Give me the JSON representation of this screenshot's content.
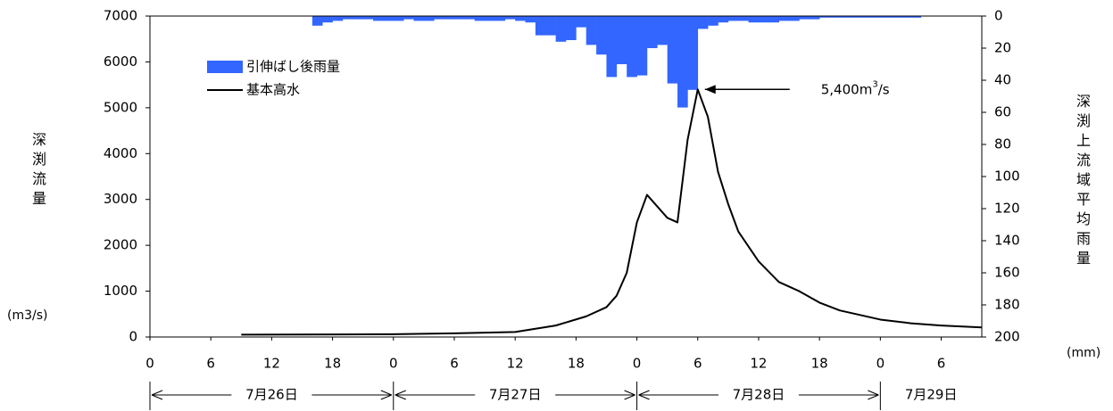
{
  "chart_data": {
    "type": "combo",
    "y_label": "深渕流量",
    "y_unit": "(m3/s)",
    "y2_label": "深渕上流域平均雨量",
    "y2_unit": "(mm)",
    "annotation": [
      "5,400m",
      "3",
      "/s"
    ],
    "xlim": [
      0,
      82
    ],
    "xticks": [
      0,
      6,
      12,
      18,
      {
        "value": 24,
        "label": "0"
      },
      {
        "value": 30,
        "label": "6"
      },
      {
        "value": 36,
        "label": "12"
      },
      {
        "value": 42,
        "label": "18"
      },
      {
        "value": 48,
        "label": "0"
      },
      {
        "value": 54,
        "label": "6"
      },
      {
        "value": 60,
        "label": "12"
      },
      {
        "value": 66,
        "label": "18"
      },
      {
        "value": 72,
        "label": "0"
      },
      {
        "value": 78,
        "label": "6"
      }
    ],
    "ylim": [
      0,
      7000
    ],
    "yticks": [
      0,
      1000,
      2000,
      3000,
      4000,
      5000,
      6000,
      7000
    ],
    "y2lim": [
      200,
      0
    ],
    "y2ticks": [
      0,
      20,
      40,
      60,
      80,
      100,
      120,
      140,
      160,
      180,
      200
    ],
    "days": [
      {
        "label": "7月26日",
        "start": 0,
        "end": 24
      },
      {
        "label": "7月27日",
        "start": 24,
        "end": 48
      },
      {
        "label": "7月28日",
        "start": 48,
        "end": 72
      },
      {
        "label": "7月29日",
        "start": 72,
        "end": 82
      }
    ],
    "legend": "top-left",
    "series": [
      {
        "name": "引伸ばし後雨量",
        "type": "bar",
        "axis": "y2",
        "color": "#3366ff",
        "x": [
          16,
          17,
          18,
          19,
          20,
          21,
          22,
          23,
          24,
          25,
          26,
          27,
          28,
          29,
          30,
          31,
          32,
          33,
          34,
          35,
          36,
          37,
          38,
          39,
          40,
          41,
          42,
          43,
          44,
          45,
          46,
          47,
          48,
          49,
          50,
          51,
          52,
          53,
          54,
          55,
          56,
          57,
          58,
          59,
          60,
          61,
          62,
          63,
          64,
          65,
          66,
          67,
          68,
          69,
          70,
          71,
          72,
          73,
          74,
          75
        ],
        "values": [
          6,
          4,
          3,
          2,
          2,
          2,
          3,
          3,
          3,
          2,
          3,
          3,
          2,
          2,
          2,
          2,
          3,
          3,
          3,
          2,
          3,
          4,
          12,
          12,
          16,
          15,
          7,
          18,
          24,
          38,
          30,
          38,
          37,
          20,
          18,
          42,
          57,
          46,
          8,
          6,
          4,
          3,
          3,
          4,
          4,
          4,
          3,
          3,
          2,
          2,
          1,
          1,
          1,
          1,
          1,
          1,
          1,
          1,
          1,
          1
        ]
      },
      {
        "name": "基本高水",
        "type": "line",
        "color": "#000000",
        "x": [
          9,
          24,
          30,
          36,
          40,
          43,
          45,
          46,
          47,
          48,
          49,
          50,
          51,
          52,
          53,
          54,
          55,
          56,
          57,
          58,
          60,
          62,
          64,
          66,
          68,
          70,
          72,
          75,
          78,
          82
        ],
        "values": [
          50,
          60,
          80,
          110,
          250,
          450,
          650,
          900,
          1400,
          2500,
          3100,
          2850,
          2600,
          2500,
          4300,
          5400,
          4800,
          3600,
          2900,
          2300,
          1650,
          1200,
          1000,
          750,
          580,
          480,
          380,
          300,
          250,
          210
        ]
      }
    ]
  }
}
